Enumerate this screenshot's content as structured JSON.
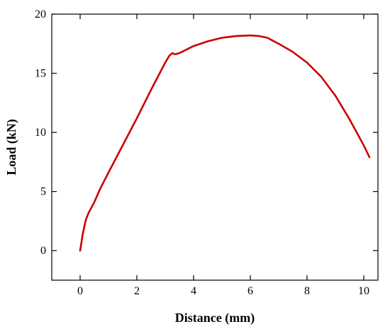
{
  "chart_data": {
    "type": "line",
    "title": "",
    "xlabel": "Distance (mm)",
    "ylabel": "Load (kN)",
    "xlim": [
      -1,
      10.5
    ],
    "ylim": [
      -2.5,
      20
    ],
    "xticks": [
      0,
      2,
      4,
      6,
      8,
      10
    ],
    "yticks": [
      0,
      5,
      10,
      15,
      20
    ],
    "xtick_labels": [
      "0",
      "2",
      "4",
      "6",
      "8",
      "10"
    ],
    "ytick_labels": [
      "0",
      "5",
      "10",
      "15",
      "20"
    ],
    "grid": false,
    "legend": "none",
    "series": [
      {
        "color": "#cc0000",
        "x": [
          0,
          0.1,
          0.2,
          0.3,
          0.5,
          0.7,
          1.0,
          1.5,
          2.0,
          2.5,
          3.0,
          3.15,
          3.25,
          3.35,
          3.5,
          4.0,
          4.5,
          5.0,
          5.5,
          6.0,
          6.3,
          6.6,
          7.0,
          7.5,
          8.0,
          8.5,
          9.0,
          9.5,
          10.0,
          10.2
        ],
        "y": [
          0,
          1.5,
          2.6,
          3.2,
          4.1,
          5.2,
          6.6,
          8.9,
          11.2,
          13.6,
          15.9,
          16.5,
          16.7,
          16.6,
          16.7,
          17.3,
          17.7,
          18.0,
          18.15,
          18.2,
          18.15,
          18.0,
          17.5,
          16.8,
          15.9,
          14.7,
          13.1,
          11.1,
          8.9,
          7.9
        ]
      }
    ]
  }
}
